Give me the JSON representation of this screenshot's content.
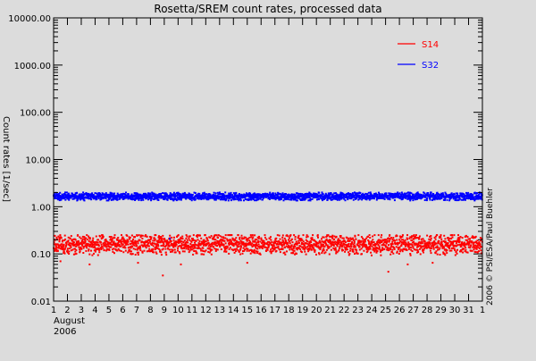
{
  "chart_data": {
    "type": "scatter",
    "title": "Rosetta/SREM count rates, processed data",
    "ylabel": "Count rates [1/sec]",
    "y_scale": "log",
    "ylim": [
      0.01,
      10000
    ],
    "y_ticks": [
      {
        "value": 0.01,
        "label": "0.01"
      },
      {
        "value": 0.1,
        "label": "0.10"
      },
      {
        "value": 1,
        "label": "1.00"
      },
      {
        "value": 10,
        "label": "10.00"
      },
      {
        "value": 100,
        "label": "100.00"
      },
      {
        "value": 1000,
        "label": "1000.00"
      },
      {
        "value": 10000,
        "label": "10000.00"
      }
    ],
    "xlim": [
      1,
      32
    ],
    "x_ticks": [
      {
        "value": 1,
        "label": "1"
      },
      {
        "value": 2,
        "label": "2"
      },
      {
        "value": 3,
        "label": "3"
      },
      {
        "value": 4,
        "label": "4"
      },
      {
        "value": 5,
        "label": "5"
      },
      {
        "value": 6,
        "label": "6"
      },
      {
        "value": 7,
        "label": "7"
      },
      {
        "value": 8,
        "label": "8"
      },
      {
        "value": 9,
        "label": "9"
      },
      {
        "value": 10,
        "label": "10"
      },
      {
        "value": 11,
        "label": "11"
      },
      {
        "value": 12,
        "label": "12"
      },
      {
        "value": 13,
        "label": "13"
      },
      {
        "value": 14,
        "label": "14"
      },
      {
        "value": 15,
        "label": "15"
      },
      {
        "value": 16,
        "label": "16"
      },
      {
        "value": 17,
        "label": "17"
      },
      {
        "value": 18,
        "label": "18"
      },
      {
        "value": 19,
        "label": "19"
      },
      {
        "value": 20,
        "label": "20"
      },
      {
        "value": 21,
        "label": "21"
      },
      {
        "value": 22,
        "label": "22"
      },
      {
        "value": 23,
        "label": "23"
      },
      {
        "value": 24,
        "label": "24"
      },
      {
        "value": 25,
        "label": "25"
      },
      {
        "value": 26,
        "label": "26"
      },
      {
        "value": 27,
        "label": "27"
      },
      {
        "value": 28,
        "label": "28"
      },
      {
        "value": 29,
        "label": "29"
      },
      {
        "value": 30,
        "label": "30"
      },
      {
        "value": 31,
        "label": "31"
      },
      {
        "value": 32,
        "label": "1"
      }
    ],
    "x_sublabel_month": "August",
    "x_sublabel_year": "2006",
    "legend_position": "top-right",
    "series": [
      {
        "name": "S14",
        "color": "#ff0000",
        "typical": 0.16,
        "band_low": 0.09,
        "band_high": 0.25,
        "outliers": [
          [
            1.5,
            0.07
          ],
          [
            3.6,
            0.06
          ],
          [
            7.1,
            0.065
          ],
          [
            8.9,
            0.035
          ],
          [
            10.2,
            0.06
          ],
          [
            15.0,
            0.065
          ],
          [
            25.2,
            0.042
          ],
          [
            26.6,
            0.06
          ],
          [
            28.4,
            0.065
          ]
        ]
      },
      {
        "name": "S32",
        "color": "#0000ff",
        "typical": 1.65,
        "band_low": 1.35,
        "band_high": 2.0,
        "outliers": [
          [
            9.4,
            0.21
          ]
        ]
      }
    ],
    "credit": "2006 © PSI/ESA/Paul Buehler"
  }
}
